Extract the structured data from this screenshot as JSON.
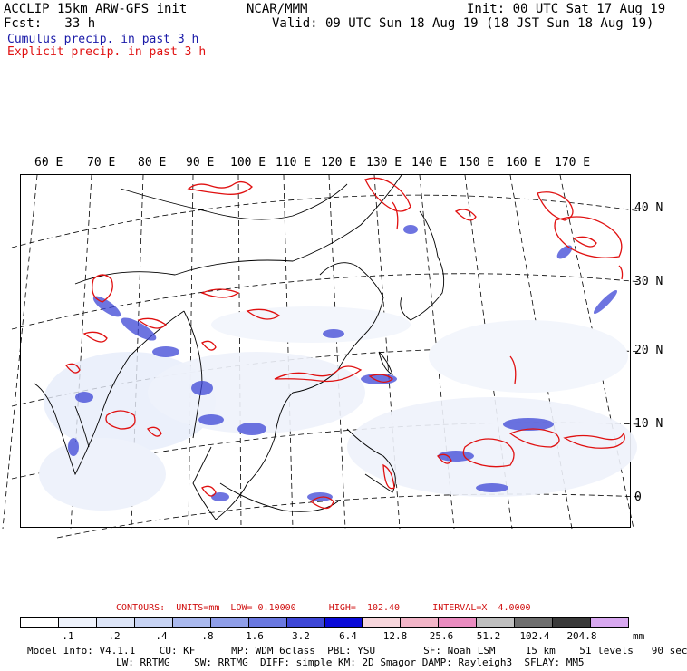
{
  "header": {
    "model_title": "ACCLIP 15km ARW-GFS init",
    "org": "NCAR/MMM",
    "init_time": "Init: 00 UTC Sat 17 Aug 19",
    "forecast": "Fcst:   33 h",
    "valid_time": "Valid: 09 UTC Sun 18 Aug 19 (18 JST Sun 18 Aug 19)"
  },
  "legend": {
    "cumulus": "Cumulus precip. in past 3 h",
    "explicit": "Explicit precip. in past 3 h",
    "cumulus_color": "#1a1aa8",
    "explicit_color": "#e01010"
  },
  "map": {
    "longitude_labels": [
      "60 E",
      "70 E",
      "80 E",
      "90 E",
      "100 E",
      "110 E",
      "120 E",
      "130 E",
      "140 E",
      "150 E",
      "160 E",
      "170 E"
    ],
    "latitude_labels": [
      "40 N",
      "30 N",
      "20 N",
      "10 N",
      "0"
    ]
  },
  "contours": {
    "text": "CONTOURS:  UNITS=mm  LOW= 0.10000      HIGH=  102.40      INTERVAL=X  4.0000"
  },
  "colorbar": {
    "colors": [
      "#ffffff",
      "#eef2fb",
      "#dde5f7",
      "#c7d3f3",
      "#aab9ee",
      "#8f9ee8",
      "#6a78e0",
      "#3d46d6",
      "#0a0ad8",
      "#f7d6dc",
      "#f2b5c8",
      "#ea8cc0",
      "#bfbfbf",
      "#6e6e6e",
      "#3a3a3a",
      "#d8a8f0"
    ],
    "ticks": [
      ".1",
      ".2",
      ".4",
      ".8",
      "1.6",
      "3.2",
      "6.4",
      "12.8",
      "25.6",
      "51.2",
      "102.4",
      "204.8"
    ],
    "unit": "mm"
  },
  "footer": {
    "line1": "Model Info: V4.1.1    CU: KF      MP: WDM 6class  PBL: YSU        SF: Noah LSM     15 km    51 levels   90 sec",
    "line2": "LW: RRTMG    SW: RRTMG  DIFF: simple KM: 2D Smagor DAMP: Rayleigh3  SFLAY: MM5"
  }
}
